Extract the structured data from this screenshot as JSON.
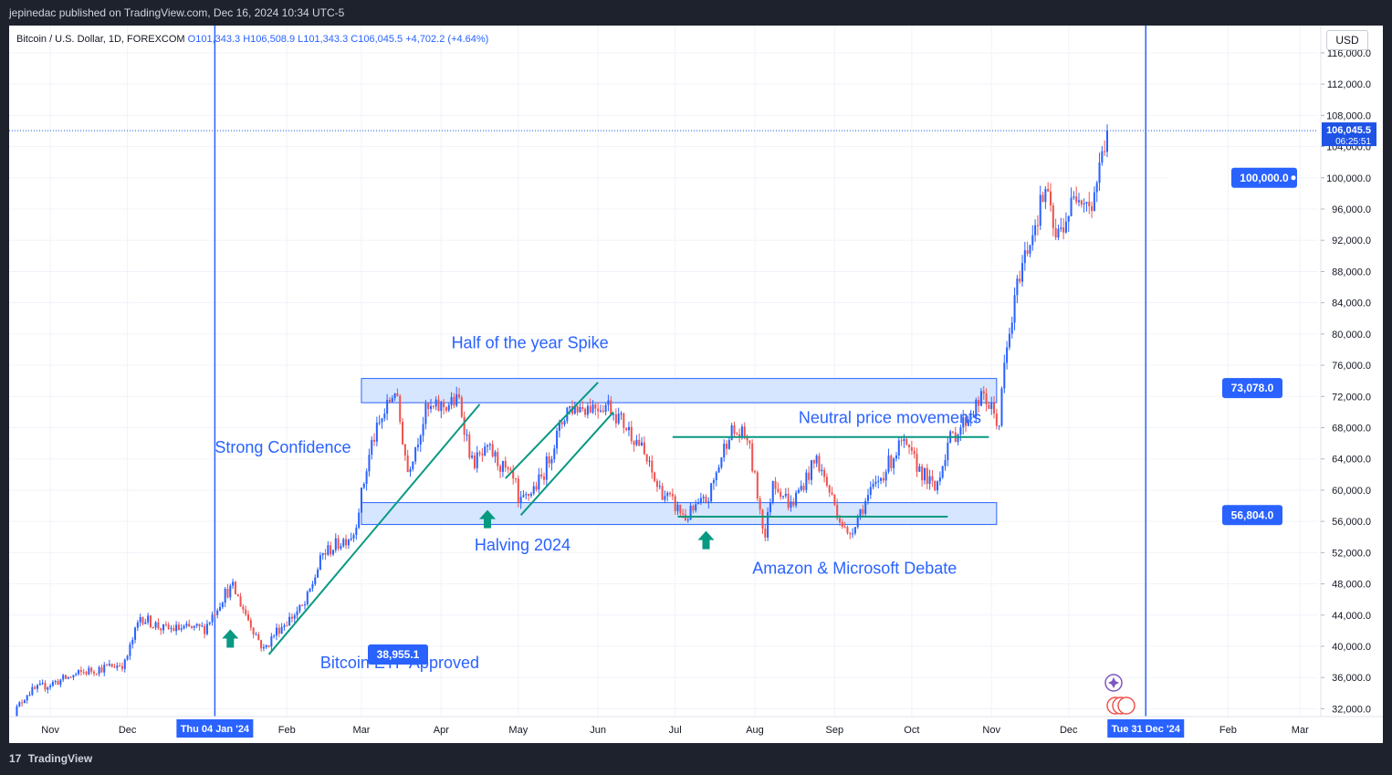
{
  "header": {
    "published_text": "jepinedac published on TradingView.com, Dec 16, 2024 10:34 UTC-5"
  },
  "legend": {
    "symbol": "Bitcoin / U.S. Dollar, 1D, FOREXCOM",
    "open": "O101,343.3",
    "high": "H106,508.9",
    "low": "L101,343.3",
    "close": "C106,045.5",
    "change": "+4,702.2 (+4.64%)"
  },
  "currency_button": "USD",
  "footer": {
    "logo_text": "TradingView",
    "logo_mark": "17"
  },
  "colors": {
    "up": "#2962ff",
    "down": "#ef5350",
    "annotation_text": "#2962ff",
    "trendline": "#089981",
    "arrow": "#089981",
    "zone_fill": "#cfe2ff",
    "zone_stroke": "#2962ff",
    "vline": "#2962ff",
    "axis_text": "#131722"
  },
  "chart_data": {
    "type": "candlestick",
    "title": "Bitcoin / U.S. Dollar, 1D, FOREXCOM",
    "y_axis": {
      "min": 31000,
      "max": 119500,
      "ticks": [
        32000,
        36000,
        40000,
        44000,
        48000,
        52000,
        56000,
        60000,
        64000,
        68000,
        72000,
        76000,
        80000,
        84000,
        88000,
        92000,
        96000,
        100000,
        104000,
        108000,
        112000,
        116000
      ],
      "tick_labels": [
        "32,000.0",
        "36,000.0",
        "40,000.0",
        "44,000.0",
        "48,000.0",
        "52,000.0",
        "56,000.0",
        "60,000.0",
        "64,000.0",
        "68,000.0",
        "72,000.0",
        "76,000.0",
        "80,000.0",
        "84,000.0",
        "88,000.0",
        "92,000.0",
        "96,000.0",
        "100,000.0",
        "104,000.0",
        "108,000.0",
        "112,000.0",
        "116,000.0"
      ]
    },
    "x_axis": {
      "range": [
        "2023-10-16",
        "2025-03-08"
      ],
      "ticks": [
        {
          "date": "2023-11-01",
          "label": "Nov"
        },
        {
          "date": "2023-12-01",
          "label": "Dec"
        },
        {
          "date": "2024-02-01",
          "label": "Feb"
        },
        {
          "date": "2024-03-01",
          "label": "Mar"
        },
        {
          "date": "2024-04-01",
          "label": "Apr"
        },
        {
          "date": "2024-05-01",
          "label": "May"
        },
        {
          "date": "2024-06-01",
          "label": "Jun"
        },
        {
          "date": "2024-07-01",
          "label": "Jul"
        },
        {
          "date": "2024-08-01",
          "label": "Aug"
        },
        {
          "date": "2024-09-01",
          "label": "Sep"
        },
        {
          "date": "2024-10-01",
          "label": "Oct"
        },
        {
          "date": "2024-11-01",
          "label": "Nov"
        },
        {
          "date": "2024-12-01",
          "label": "Dec"
        },
        {
          "date": "2025-02-01",
          "label": "Feb"
        },
        {
          "date": "2025-03-01",
          "label": "Mar"
        }
      ],
      "highlight_labels": [
        {
          "date": "2024-01-04",
          "label": "Thu 04 Jan '24"
        },
        {
          "date": "2024-12-31",
          "label": "Tue 31 Dec '24"
        }
      ]
    },
    "price_path": [
      [
        "2023-10-16",
        30500
      ],
      [
        "2023-10-23",
        34000
      ],
      [
        "2023-11-01",
        35200
      ],
      [
        "2023-11-15",
        36800
      ],
      [
        "2023-11-30",
        37800
      ],
      [
        "2023-12-06",
        43800
      ],
      [
        "2023-12-15",
        42200
      ],
      [
        "2023-12-31",
        42300
      ],
      [
        "2024-01-08",
        46800
      ],
      [
        "2024-01-11",
        47500
      ],
      [
        "2024-01-23",
        39500
      ],
      [
        "2024-01-28",
        42000
      ],
      [
        "2024-02-08",
        45300
      ],
      [
        "2024-02-15",
        51800
      ],
      [
        "2024-02-27",
        54500
      ],
      [
        "2024-03-05",
        66000
      ],
      [
        "2024-03-14",
        73000
      ],
      [
        "2024-03-19",
        62500
      ],
      [
        "2024-03-26",
        70000
      ],
      [
        "2024-04-08",
        71500
      ],
      [
        "2024-04-13",
        63500
      ],
      [
        "2024-04-20",
        65000
      ],
      [
        "2024-04-30",
        60600
      ],
      [
        "2024-05-01",
        57800
      ],
      [
        "2024-05-10",
        61500
      ],
      [
        "2024-05-20",
        70500
      ],
      [
        "2024-06-05",
        71000
      ],
      [
        "2024-06-17",
        66000
      ],
      [
        "2024-06-24",
        60500
      ],
      [
        "2024-07-05",
        56500
      ],
      [
        "2024-07-14",
        59000
      ],
      [
        "2024-07-22",
        67500
      ],
      [
        "2024-07-29",
        66800
      ],
      [
        "2024-08-05",
        54000
      ],
      [
        "2024-08-08",
        61500
      ],
      [
        "2024-08-15",
        58000
      ],
      [
        "2024-08-25",
        64000
      ],
      [
        "2024-09-06",
        54000
      ],
      [
        "2024-09-12",
        58000
      ],
      [
        "2024-09-27",
        66000
      ],
      [
        "2024-10-10",
        60000
      ],
      [
        "2024-10-15",
        66000
      ],
      [
        "2024-10-29",
        72000
      ],
      [
        "2024-11-04",
        68500
      ],
      [
        "2024-11-06",
        75800
      ],
      [
        "2024-11-12",
        88000
      ],
      [
        "2024-11-22",
        98500
      ],
      [
        "2024-11-26",
        92000
      ],
      [
        "2024-12-05",
        98500
      ],
      [
        "2024-12-10",
        96500
      ],
      [
        "2024-12-16",
        106045.5
      ]
    ],
    "last_price": {
      "value": 106045.5,
      "label": "106,045.5",
      "countdown": "06:25:51"
    },
    "price_labels": [
      {
        "value": 100000,
        "label": "100,000.0"
      },
      {
        "value": 73078,
        "label": "73,078.0"
      },
      {
        "value": 56804,
        "label": "56,804.0"
      },
      {
        "value": 38955.1,
        "label": "38,955.1"
      }
    ],
    "zones": [
      {
        "from": "2024-03-01",
        "to": "2024-11-03",
        "low": 71200,
        "high": 74300
      },
      {
        "from": "2024-03-01",
        "to": "2024-11-03",
        "low": 55600,
        "high": 58400
      }
    ],
    "vertical_lines": [
      "2024-01-04",
      "2024-12-31"
    ],
    "trendlines": [
      {
        "from": [
          "2024-01-25",
          38955.1
        ],
        "to": [
          "2024-04-16",
          71000
        ]
      },
      {
        "from": [
          "2024-05-02",
          56800
        ],
        "to": [
          "2024-06-07",
          70000
        ]
      },
      {
        "from": [
          "2024-04-26",
          61500
        ],
        "to": [
          "2024-06-01",
          73800
        ]
      },
      {
        "from": [
          "2024-06-30",
          66800
        ],
        "to": [
          "2024-10-31",
          66800
        ]
      },
      {
        "from": [
          "2024-07-02",
          56600
        ],
        "to": [
          "2024-10-15",
          56600
        ]
      }
    ],
    "arrows": [
      {
        "date": "2024-01-10",
        "value": 41000
      },
      {
        "date": "2024-04-19",
        "value": 56300
      },
      {
        "date": "2024-07-13",
        "value": 53600
      }
    ],
    "annotations": [
      {
        "text": "Half of the year Spike",
        "date": "2024-04-05",
        "value": 78200
      },
      {
        "text": "Neutral price movements",
        "date": "2024-08-18",
        "value": 68600
      },
      {
        "text": "Strong Confidence",
        "date": "2024-01-04",
        "value": 64800
      },
      {
        "text": "Halving 2024",
        "date": "2024-04-14",
        "value": 52300
      },
      {
        "text": "Amazon & Microsoft  Debate",
        "date": "2024-07-31",
        "value": 49300
      },
      {
        "text": "Bitcoin ETF Approved",
        "date": "2024-02-14",
        "value": 37200
      }
    ]
  }
}
